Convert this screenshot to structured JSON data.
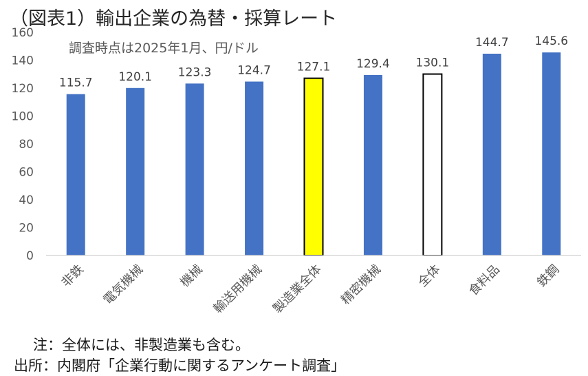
{
  "chart_data": {
    "type": "bar",
    "title": "（図表1）輸出企業の為替・採算レート",
    "subtitle": "調査時点は2025年1月、円/ドル",
    "categories": [
      "非鉄",
      "電気機械",
      "機械",
      "輸送用機械",
      "製造業全体",
      "精密機械",
      "全体",
      "食料品",
      "鉄鋼"
    ],
    "values": [
      115.7,
      120.1,
      123.3,
      124.7,
      127.1,
      129.4,
      130.1,
      144.7,
      145.6
    ],
    "value_labels": [
      "115.7",
      "120.1",
      "123.3",
      "124.7",
      "127.1",
      "129.4",
      "130.1",
      "144.7",
      "145.6"
    ],
    "yticks": [
      "0",
      "20",
      "40",
      "60",
      "80",
      "100",
      "120",
      "140",
      "160"
    ],
    "ylim": [
      0,
      160
    ],
    "xlabel": "",
    "ylabel": "",
    "grid": false,
    "colors": {
      "default_bar": "#4472C4",
      "highlight_manufacturing": "#FFFF00",
      "highlight_all": "#FFFFFF",
      "highlight_outline": "#000000",
      "axis": "#D9D9D9"
    },
    "bar_styles": [
      "default",
      "default",
      "default",
      "default",
      "highlight_manufacturing",
      "default",
      "highlight_all",
      "default",
      "default"
    ]
  },
  "notes": {
    "note": "注：全体には、非製造業も含む。",
    "source": "出所：内閣府「企業行動に関するアンケート調査」"
  }
}
